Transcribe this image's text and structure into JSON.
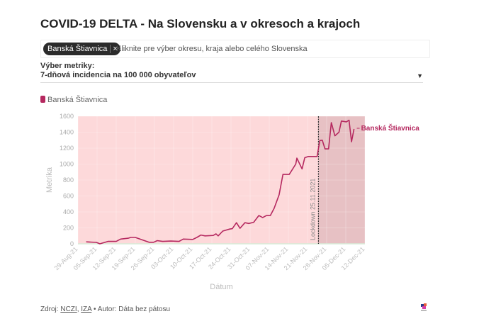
{
  "title": "COVID-19 DELTA - Na Slovensku a v okresoch a krajoch",
  "selector": {
    "chip": "Banská Štiavnica",
    "chip_remove": "×",
    "placeholder": "Kliknite pre výber okresu, kraja alebo celého Slovenska"
  },
  "metric": {
    "label": "Výber metriky:",
    "value": "7-dňová incidencia na 100 000 obyvateľov",
    "arrow": "▼"
  },
  "legend": {
    "label": "Banská Štiavnica"
  },
  "footer": {
    "prefix": "Zdroj:",
    "src1": "NCZI",
    "sep": ",",
    "src2": "IZA",
    "suffix": "• Autor: Dáta bez pátosu"
  },
  "colors": {
    "line": "#b5285f",
    "bg": "#fdd9da",
    "lockdown_bg": "#e7c1c4"
  },
  "chart_data": {
    "type": "line",
    "xlabel": "Dátum",
    "ylabel": "Metrika",
    "ylim": [
      0,
      1600
    ],
    "yticks": [
      "0",
      "200",
      "400",
      "600",
      "800",
      "1000",
      "1200",
      "1400",
      "1600"
    ],
    "xticks": [
      "29-Aug-21",
      "05-Sep-21",
      "12-Sep-21",
      "19-Sep-21",
      "26-Sep-21",
      "03-Oct-21",
      "10-Oct-21",
      "17-Oct-21",
      "24-Oct-21",
      "31-Oct-21",
      "07-Nov-21",
      "14-Nov-21",
      "21-Nov-21",
      "28-Nov-21",
      "05-Dec-21",
      "12-Dec-21"
    ],
    "x_unit": "days since 29-Aug-21",
    "xlim": [
      0,
      105
    ],
    "annotation": {
      "label": "Lockdown 25.11.2021",
      "day": 88
    },
    "series": [
      {
        "name": "Banská Štiavnica",
        "label": "Banská Štiavnica",
        "days": [
          3,
          6.8,
          8,
          11,
          14,
          15.6,
          18.4,
          19.3,
          21,
          26,
          27.7,
          29,
          31,
          34,
          37,
          38.5,
          42,
          43.5,
          45,
          46.5,
          49.5,
          50.5,
          51.3,
          53,
          55.5,
          56.5,
          58,
          59.3,
          61.1,
          62.5,
          64.3,
          66.2,
          67.6,
          69,
          70.4,
          71.8,
          73.6,
          75,
          77.3,
          79.7,
          80.1,
          82,
          83,
          84.3,
          87.5,
          88.5,
          89.4,
          90.4,
          91.7,
          92.7,
          94,
          95.5,
          96.4,
          98.2,
          99.2,
          100.1,
          101
        ],
        "values": [
          25,
          18,
          0,
          30,
          30,
          60,
          70,
          80,
          80,
          20,
          20,
          40,
          30,
          35,
          30,
          60,
          55,
          80,
          110,
          100,
          105,
          125,
          100,
          160,
          185,
          190,
          265,
          195,
          265,
          255,
          270,
          355,
          330,
          355,
          355,
          445,
          615,
          870,
          870,
          1000,
          1075,
          940,
          1080,
          1095,
          1095,
          1295,
          1300,
          1190,
          1190,
          1520,
          1355,
          1400,
          1540,
          1530,
          1550,
          1280,
          1440
        ]
      }
    ]
  }
}
